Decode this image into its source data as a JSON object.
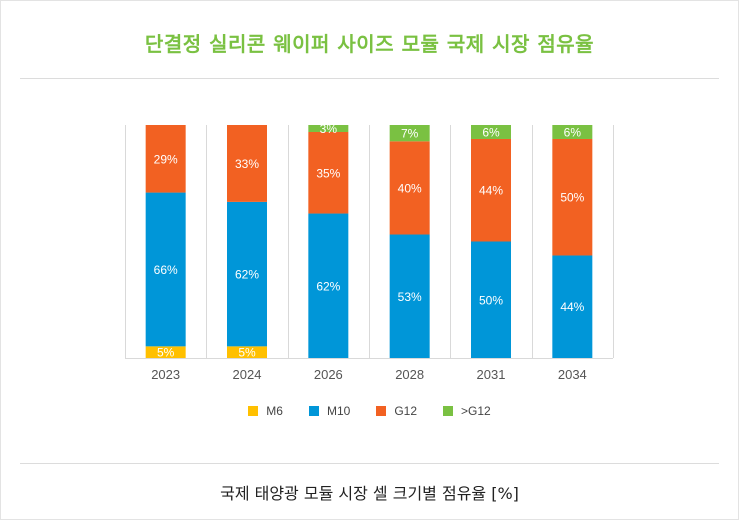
{
  "title": "단결정 실리콘 웨이퍼 사이즈 모듈 국제 시장 점유율",
  "caption": "국제 태양광 모듈 시장 셀 크기별 점유율 [%]",
  "chart_data": {
    "type": "bar",
    "stacked": true,
    "normalized": true,
    "title": "단결정 실리콘 웨이퍼 사이즈 모듈 국제 시장 점유율",
    "xlabel": "",
    "ylabel": "",
    "ylim": [
      0,
      100
    ],
    "grid": "vertical",
    "legend_position": "bottom",
    "categories": [
      "2023",
      "2024",
      "2026",
      "2028",
      "2031",
      "2034"
    ],
    "series": [
      {
        "name": "M6",
        "color": "#ffc000",
        "values": [
          5,
          5,
          0,
          0,
          0,
          0
        ]
      },
      {
        "name": "M10",
        "color": "#0096d8",
        "values": [
          66,
          62,
          62,
          53,
          50,
          44
        ]
      },
      {
        "name": "G12",
        "color": "#f26122",
        "values": [
          29,
          33,
          35,
          40,
          44,
          50
        ]
      },
      {
        "name": ">G12",
        "color": "#7ac142",
        "values": [
          0,
          0,
          3,
          7,
          6,
          6
        ]
      }
    ],
    "data_labels": true,
    "label_suffix": "%"
  }
}
